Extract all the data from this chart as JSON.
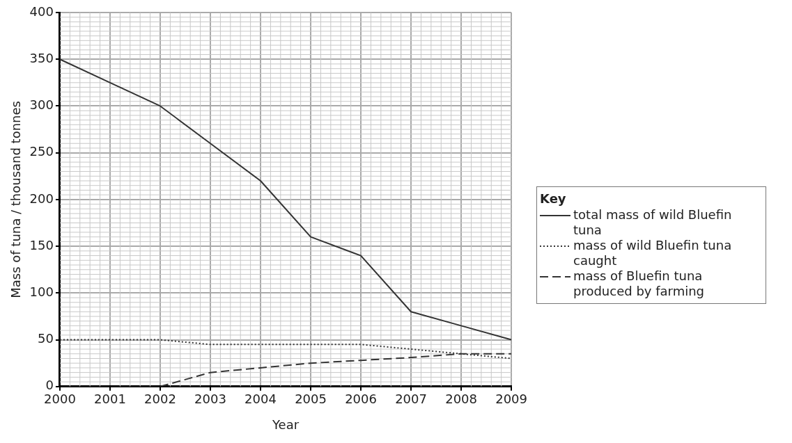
{
  "chart_data": {
    "type": "line",
    "xlabel": "Year",
    "ylabel": "Mass of tuna / thousand tonnes",
    "legend_title": "Key",
    "x": [
      2000,
      2001,
      2002,
      2003,
      2004,
      2005,
      2006,
      2007,
      2008,
      2009
    ],
    "series": [
      {
        "name": "total mass of wild Bluefin tuna",
        "color": "#333333",
        "line_style": "solid",
        "values": [
          350,
          325,
          300,
          260,
          220,
          160,
          140,
          80,
          65,
          50
        ]
      },
      {
        "name": "mass of wild Bluefin tuna caught",
        "color": "#333333",
        "line_style": "dotted",
        "values": [
          50,
          50,
          50,
          45,
          45,
          45,
          45,
          40,
          35,
          30
        ]
      },
      {
        "name": "mass of Bluefin tuna produced by farming",
        "color": "#333333",
        "line_style": "dashed",
        "values": [
          null,
          null,
          0,
          15,
          20,
          25,
          28,
          31,
          35,
          35
        ]
      }
    ],
    "xlim": [
      2000,
      2009
    ],
    "xticks": [
      2000,
      2001,
      2002,
      2003,
      2004,
      2005,
      2006,
      2007,
      2008,
      2009
    ],
    "ylim": [
      0,
      400
    ],
    "yticks": [
      0,
      50,
      100,
      150,
      200,
      250,
      300,
      350,
      400
    ],
    "grid": true,
    "legend": "right",
    "marker": "none"
  }
}
